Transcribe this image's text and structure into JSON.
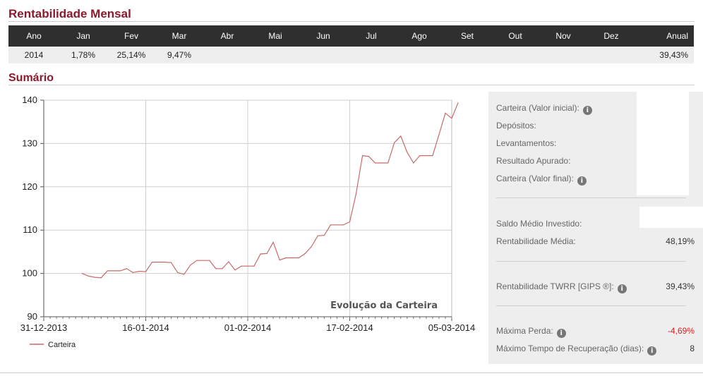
{
  "monthly": {
    "title": "Rentabilidade Mensal",
    "headers": [
      "Ano",
      "Jan",
      "Fev",
      "Mar",
      "Abr",
      "Mai",
      "Jun",
      "Jul",
      "Ago",
      "Set",
      "Out",
      "Nov",
      "Dez",
      "Anual"
    ],
    "rows": [
      [
        "2014",
        "1,78%",
        "25,14%",
        "9,47%",
        "",
        "",
        "",
        "",
        "",
        "",
        "",
        "",
        "",
        "39,43%"
      ]
    ]
  },
  "summary": {
    "title": "Sumário",
    "items": [
      {
        "label": "Carteira (Valor inicial):",
        "value": ""
      },
      {
        "label": "Depósitos:",
        "value": ""
      },
      {
        "label": "Levantamentos:",
        "value": ""
      },
      {
        "label": "Resultado Apurado:",
        "value": ""
      },
      {
        "label": "Carteira (Valor final):",
        "value": ""
      },
      {
        "label": "Saldo Médio Investido:",
        "value": ""
      },
      {
        "label": "Rentabilidade Média:",
        "value": "48,19%"
      },
      {
        "label": "Rentabilidade TWRR [GIPS ®]:",
        "value": "39,43%"
      },
      {
        "label": "Máxima Perda:",
        "value": "-4,69%"
      },
      {
        "label": "Máximo Tempo de Recuperação (dias):",
        "value": "8"
      }
    ],
    "info_icon": "i"
  },
  "chart_data": {
    "type": "line",
    "title": "Evolução da Carteira",
    "ylim": [
      90,
      140
    ],
    "yticks": [
      90,
      100,
      110,
      120,
      130,
      140
    ],
    "xticks": [
      "31-12-2013",
      "16-01-2014",
      "01-02-2014",
      "17-02-2014",
      "05-03-2014"
    ],
    "grid": true,
    "legend": "bottom-left",
    "series": [
      {
        "name": "Carteira",
        "color": "#c96a6a",
        "points": [
          [
            "2014-01-06",
            100.0
          ],
          [
            "2014-01-07",
            99.4
          ],
          [
            "2014-01-08",
            99.1
          ],
          [
            "2014-01-09",
            99.0
          ],
          [
            "2014-01-10",
            100.6
          ],
          [
            "2014-01-11",
            100.6
          ],
          [
            "2014-01-12",
            100.6
          ],
          [
            "2014-01-13",
            101.1
          ],
          [
            "2014-01-14",
            100.2
          ],
          [
            "2014-01-15",
            100.5
          ],
          [
            "2014-01-16",
            100.4
          ],
          [
            "2014-01-17",
            102.6
          ],
          [
            "2014-01-18",
            102.6
          ],
          [
            "2014-01-19",
            102.6
          ],
          [
            "2014-01-20",
            102.5
          ],
          [
            "2014-01-21",
            100.2
          ],
          [
            "2014-01-22",
            99.8
          ],
          [
            "2014-01-23",
            101.9
          ],
          [
            "2014-01-24",
            103.0
          ],
          [
            "2014-01-25",
            103.0
          ],
          [
            "2014-01-26",
            103.0
          ],
          [
            "2014-01-27",
            101.1
          ],
          [
            "2014-01-28",
            101.1
          ],
          [
            "2014-01-29",
            102.7
          ],
          [
            "2014-01-30",
            100.8
          ],
          [
            "2014-01-31",
            101.7
          ],
          [
            "2014-02-01",
            101.7
          ],
          [
            "2014-02-02",
            101.7
          ],
          [
            "2014-02-03",
            104.5
          ],
          [
            "2014-02-04",
            104.6
          ],
          [
            "2014-02-05",
            107.2
          ],
          [
            "2014-02-06",
            103.1
          ],
          [
            "2014-02-07",
            103.6
          ],
          [
            "2014-02-08",
            103.6
          ],
          [
            "2014-02-09",
            103.6
          ],
          [
            "2014-02-10",
            104.6
          ],
          [
            "2014-02-11",
            106.2
          ],
          [
            "2014-02-12",
            108.7
          ],
          [
            "2014-02-13",
            108.8
          ],
          [
            "2014-02-14",
            111.2
          ],
          [
            "2014-02-15",
            111.2
          ],
          [
            "2014-02-16",
            111.2
          ],
          [
            "2014-02-17",
            111.9
          ],
          [
            "2014-02-18",
            118.4
          ],
          [
            "2014-02-19",
            127.2
          ],
          [
            "2014-02-20",
            127.0
          ],
          [
            "2014-02-21",
            125.5
          ],
          [
            "2014-02-22",
            125.5
          ],
          [
            "2014-02-23",
            125.5
          ],
          [
            "2014-02-24",
            130.2
          ],
          [
            "2014-02-25",
            131.7
          ],
          [
            "2014-02-26",
            128.0
          ],
          [
            "2014-02-27",
            125.5
          ],
          [
            "2014-02-28",
            127.2
          ],
          [
            "2014-03-01",
            127.2
          ],
          [
            "2014-03-02",
            127.2
          ],
          [
            "2014-03-03",
            132.0
          ],
          [
            "2014-03-04",
            137.0
          ],
          [
            "2014-03-05",
            135.8
          ],
          [
            "2014-03-06",
            139.4
          ]
        ]
      }
    ]
  }
}
